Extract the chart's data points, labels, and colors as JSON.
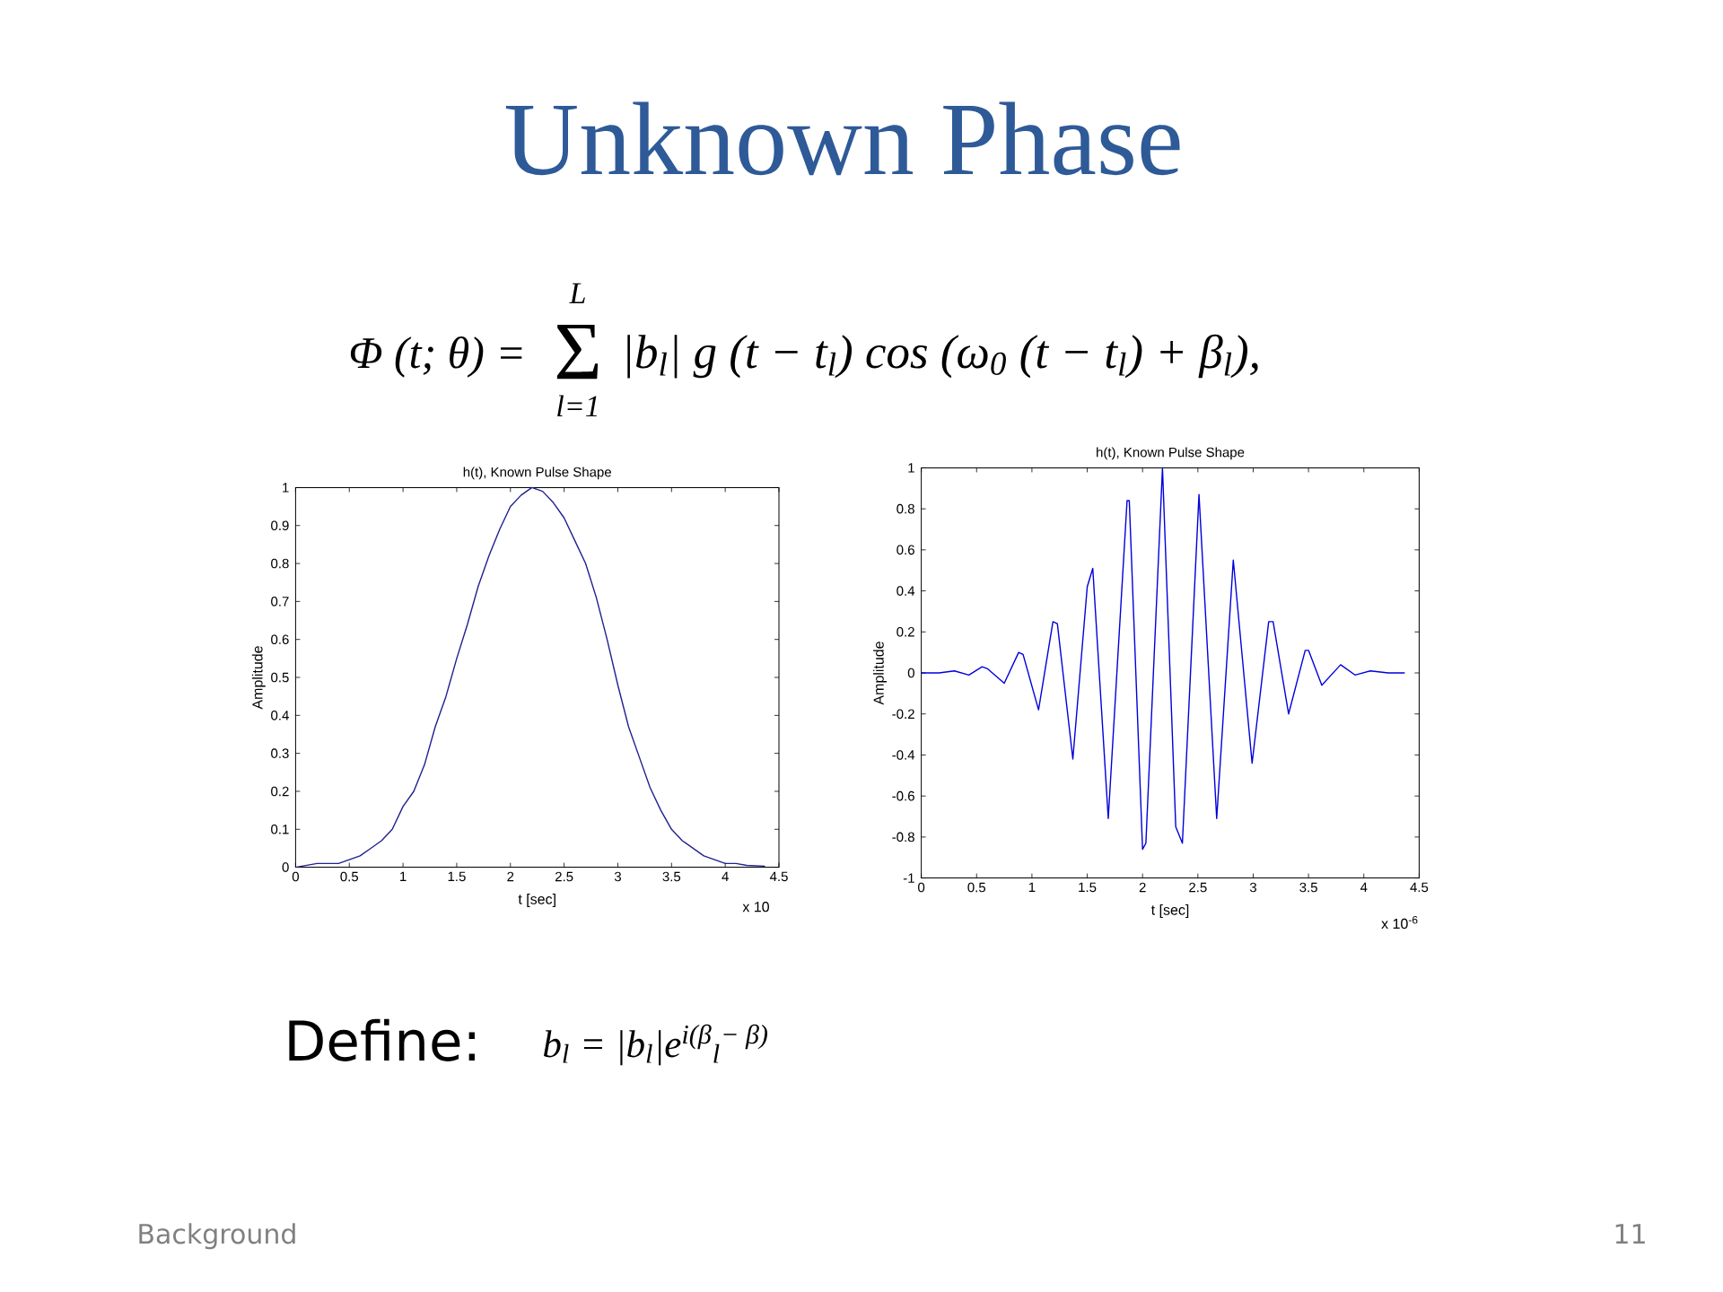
{
  "chart_data": [
    {
      "type": "other",
      "title": "Unknown Phase",
      "annotations": [
        "Φ (t; θ) =",
        "Σ",
        "L",
        "l=1",
        "|b$_{l}$| g (t − t$_{l}$) cos (ω$_{0}$ (t − t$_{l}$) + β$_{l}$),",
        "Define:",
        "b$_{l}$ = |b$_{l}$|e$^{i(β}$$_{l}$$^{− β)}$",
        "Background",
        "11"
      ]
    },
    {
      "type": "line",
      "title": "h(t), Known Pulse Shape",
      "xlabel": "t [sec]",
      "ylabel": "Amplitude",
      "color": "#202090",
      "x": [
        0,
        0.2,
        0.4,
        0.5,
        0.6,
        0.7,
        0.8,
        0.9,
        1.0,
        1.1,
        1.2,
        1.3,
        1.4,
        1.5,
        1.6,
        1.7,
        1.8,
        1.9,
        2.0,
        2.1,
        2.2,
        2.3,
        2.4,
        2.5,
        2.6,
        2.7,
        2.8,
        2.9,
        3.0,
        3.1,
        3.2,
        3.3,
        3.4,
        3.5,
        3.6,
        3.7,
        3.8,
        3.9,
        4.0,
        4.1,
        4.2,
        4.37
      ],
      "values": [
        0.0,
        0.01,
        0.01,
        0.02,
        0.03,
        0.05,
        0.07,
        0.1,
        0.16,
        0.2,
        0.27,
        0.37,
        0.45,
        0.55,
        0.64,
        0.74,
        0.82,
        0.89,
        0.95,
        0.98,
        1.0,
        0.99,
        0.96,
        0.92,
        0.86,
        0.8,
        0.71,
        0.6,
        0.48,
        0.37,
        0.29,
        0.21,
        0.15,
        0.1,
        0.07,
        0.05,
        0.03,
        0.02,
        0.01,
        0.01,
        0.005,
        0.003
      ],
      "xlim": [
        0,
        4.5
      ],
      "ylim": [
        0,
        1
      ],
      "xticks": [
        0,
        0.5,
        1,
        1.5,
        2,
        2.5,
        3,
        3.5,
        4,
        4.5
      ],
      "yticks": [
        0,
        0.1,
        0.2,
        0.3,
        0.4,
        0.5,
        0.6,
        0.7,
        0.8,
        0.9,
        1
      ],
      "annotations": [
        "x 10"
      ]
    },
    {
      "type": "line",
      "title": "h(t), Known Pulse Shape",
      "xlabel": "t [sec]",
      "ylabel": "Amplitude",
      "color": "#0000dd",
      "x": [
        0,
        0.16,
        0.3,
        0.43,
        0.55,
        0.6,
        0.75,
        0.88,
        0.92,
        1.06,
        1.19,
        1.23,
        1.37,
        1.5,
        1.55,
        1.69,
        1.86,
        1.88,
        2.0,
        2.03,
        2.18,
        2.3,
        2.36,
        2.51,
        2.67,
        2.82,
        2.99,
        3.14,
        3.18,
        3.32,
        3.47,
        3.5,
        3.62,
        3.79,
        3.92,
        4.06,
        4.22,
        4.37
      ],
      "values": [
        0,
        0,
        0.01,
        -0.01,
        0.03,
        0.02,
        -0.05,
        0.1,
        0.09,
        -0.18,
        0.25,
        0.24,
        -0.42,
        0.42,
        0.51,
        -0.71,
        0.84,
        0.84,
        -0.86,
        -0.83,
        1.0,
        -0.75,
        -0.83,
        0.87,
        -0.71,
        0.55,
        -0.44,
        0.25,
        0.25,
        -0.2,
        0.11,
        0.11,
        -0.06,
        0.04,
        -0.01,
        0.01,
        0,
        0
      ],
      "xlim": [
        0,
        4.5
      ],
      "ylim": [
        -1,
        1
      ],
      "xticks": [
        0,
        0.5,
        1,
        1.5,
        2,
        2.5,
        3,
        3.5,
        4,
        4.5
      ],
      "yticks": [
        -1,
        -0.8,
        -0.6,
        -0.4,
        -0.2,
        0,
        0.2,
        0.4,
        0.6,
        0.8,
        1
      ],
      "annotations": [
        "x 10$^{-6}$"
      ]
    }
  ]
}
